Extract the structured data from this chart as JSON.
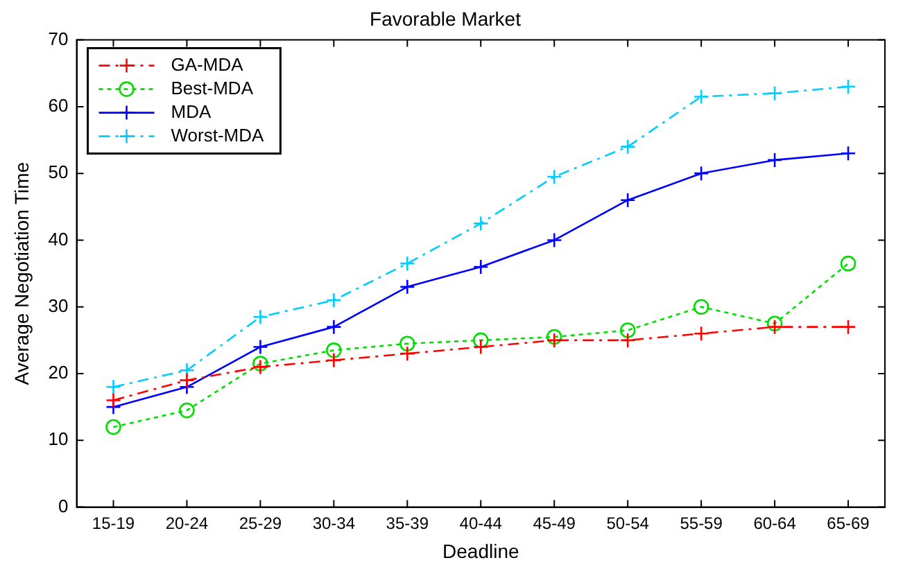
{
  "chart_data": {
    "type": "line",
    "title": "Favorable Market",
    "xlabel": "Deadline",
    "ylabel": "Average Negotiation Time",
    "categories": [
      "15-19",
      "20-24",
      "25-29",
      "30-34",
      "35-39",
      "40-44",
      "45-49",
      "50-54",
      "55-59",
      "60-64",
      "65-69"
    ],
    "ylim": [
      0,
      70
    ],
    "yticks": [
      0,
      10,
      20,
      30,
      40,
      50,
      60,
      70
    ],
    "grid": false,
    "legend": "top left",
    "series": [
      {
        "name": "GA-MDA",
        "color": "#ff0000",
        "marker": "cross",
        "line_style": "dashed",
        "values": [
          16,
          19,
          21,
          22,
          23,
          24,
          25,
          25,
          26,
          27,
          27
        ]
      },
      {
        "name": "Best-MDA",
        "color": "#00dd00",
        "marker": "circle",
        "line_style": "dotted",
        "values": [
          12,
          14.5,
          21.5,
          23.5,
          24.5,
          25,
          25.5,
          26.5,
          30,
          27.5,
          36.5
        ]
      },
      {
        "name": "MDA",
        "color": "#0000ff",
        "marker": "cross",
        "line_style": "solid",
        "values": [
          15,
          18,
          24,
          27,
          33,
          36,
          40,
          46,
          50,
          52,
          53
        ]
      },
      {
        "name": "Worst-MDA",
        "color": "#00ccff",
        "marker": "cross",
        "line_style": "dashed",
        "values": [
          18,
          20.5,
          28.5,
          31,
          36.5,
          42.5,
          49.5,
          54,
          61.5,
          62,
          63
        ]
      }
    ]
  }
}
